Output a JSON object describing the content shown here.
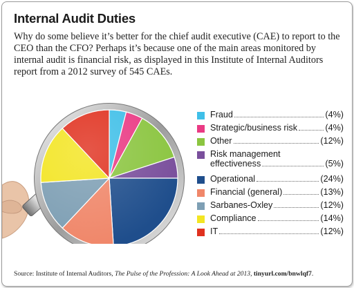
{
  "title": "Internal Audit Duties",
  "intro": "Why do some believe it’s better for the chief audit executive (CAE) to report to the CEO than the CFO? Perhaps it’s because one of the main areas monitored by internal audit is financial risk, as displayed in this Institute of Internal Auditors report from a 2012 survey of 545 CAEs.",
  "source": {
    "prefix": "Source: Institute of Internal Auditors, ",
    "publication": "The Pulse of the Profession: A Look Ahead at 2013",
    "separator": ", ",
    "url": "tinyurl.com/bnwlqf7",
    "suffix": "."
  },
  "chart_data": {
    "type": "pie",
    "title": "",
    "legend_position": "right",
    "slices": [
      {
        "label": "Fraud",
        "value": 4,
        "value_label": "(4%)",
        "color": "#3fbfe8"
      },
      {
        "label": "Strategic/business risk",
        "value": 4,
        "value_label": "(4%)",
        "color": "#ea3a84"
      },
      {
        "label": "Other",
        "value": 12,
        "value_label": "(12%)",
        "color": "#8bc540"
      },
      {
        "label": "Risk management effectiveness",
        "label_lines": [
          "Risk management",
          "effectiveness"
        ],
        "value": 5,
        "value_label": "(5%)",
        "color": "#7a4f9c"
      },
      {
        "label": "Operational",
        "value": 24,
        "value_label": "(24%)",
        "color": "#1f4e8c"
      },
      {
        "label": "Financial (general)",
        "value": 13,
        "value_label": "(13%)",
        "color": "#f0876a"
      },
      {
        "label": "Sarbanes-Oxley",
        "value": 12,
        "value_label": "(12%)",
        "color": "#7e9fb4"
      },
      {
        "label": "Compliance",
        "value": 14,
        "value_label": "(14%)",
        "color": "#f3e523"
      },
      {
        "label": "IT",
        "value": 12,
        "value_label": "(12%)",
        "color": "#e0311f"
      }
    ]
  }
}
